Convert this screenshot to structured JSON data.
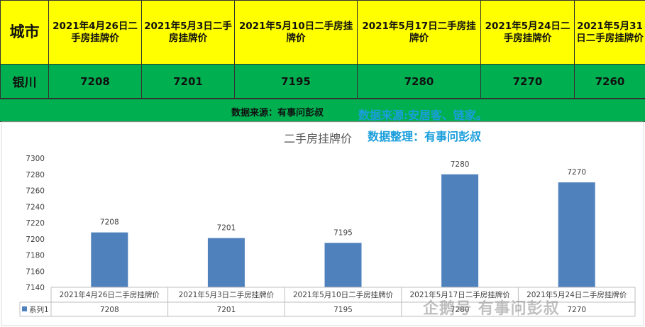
{
  "table": {
    "city_header": "城市",
    "headers": [
      "2021年4月26日二手房挂牌价",
      "2021年5月3日二手房挂牌价",
      "2021年5月10日二手房挂牌价",
      "2021年5月17日二手房挂牌价",
      "2021年5月24日二手房挂牌价",
      "2021年5月31日二手房挂牌价"
    ],
    "city": "银川",
    "values": [
      "7208",
      "7201",
      "7195",
      "7280",
      "7270",
      "7260"
    ]
  },
  "source_label": "数据来源：有事问彭叔",
  "overlay_source": "数据来源:安居客、链家。",
  "overlay_organizer": "数据整理：有事问彭叔",
  "watermark": "企鹅号 有事问彭叔",
  "colors": {
    "header_bg": "#ffff00",
    "row_bg": "#00b050",
    "bar": "#4f81bd",
    "overlay_text": "#1a9edb"
  },
  "chart_data": {
    "type": "bar",
    "title": "二手房挂牌价",
    "categories": [
      "2021年4月26日二手房挂牌价",
      "2021年5月3日二手房挂牌价",
      "2021年5月10日二手房挂牌价",
      "2021年5月17日二手房挂牌价",
      "2021年5月24日二手房挂牌价"
    ],
    "series": [
      {
        "name": "系列1",
        "values": [
          7208,
          7201,
          7195,
          7280,
          7270
        ]
      }
    ],
    "value_labels": [
      "7208",
      "7201",
      "7195",
      "7280",
      "7270"
    ],
    "ylim": [
      7140,
      7300
    ],
    "yticks": [
      7140,
      7160,
      7180,
      7200,
      7220,
      7240,
      7260,
      7280,
      7300
    ],
    "ytick_labels": [
      "7140",
      "7160",
      "7180",
      "7200",
      "7220",
      "7240",
      "7260",
      "7280",
      "7300"
    ],
    "grid": false,
    "data_table": true
  }
}
